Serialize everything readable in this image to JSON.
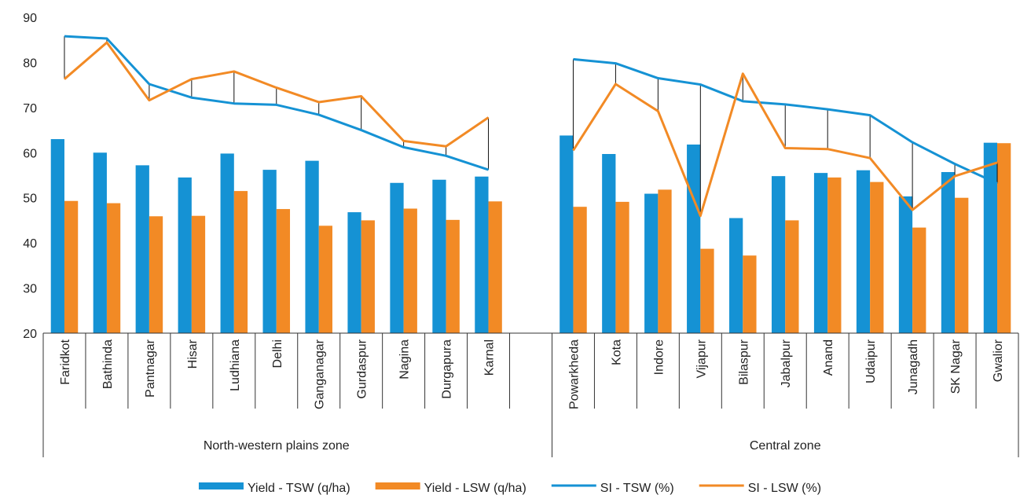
{
  "chart_data": {
    "type": "bar-line",
    "categories": [
      "Faridkot",
      "Bathinda",
      "Pantnagar",
      "Hisar",
      "Ludhiana",
      "Delhi",
      "Ganganagar",
      "Gurdaspur",
      "Nagina",
      "Durgapura",
      "Karnal",
      null,
      "Powarkheda",
      "Kota",
      "Indore",
      "Vijapur",
      "Bilaspur",
      "Jabalpur",
      "Anand",
      "Udaipur",
      "Junagadh",
      "SK Nagar",
      "Gwalior"
    ],
    "groups": [
      "North-western plains zone",
      "Central zone"
    ],
    "series": [
      {
        "name": "Yield - TSW (q/ha)",
        "type": "bar",
        "color": "#1592d4",
        "values": [
          63,
          60,
          57.2,
          54.5,
          59.8,
          56.2,
          58.2,
          46.8,
          53.3,
          54,
          54.7,
          null,
          63.8,
          59.7,
          50.9,
          61.8,
          45.5,
          54.8,
          55.5,
          56.1,
          50.3,
          55.7,
          62.2
        ]
      },
      {
        "name": "Yield - LSW (q/ha)",
        "type": "bar",
        "color": "#f28a25",
        "values": [
          49.3,
          48.8,
          45.9,
          46,
          51.5,
          47.5,
          43.8,
          45,
          47.6,
          45.1,
          49.2,
          null,
          48,
          49.1,
          51.8,
          38.7,
          37.2,
          45,
          54.5,
          53.5,
          43.4,
          50,
          62.1
        ]
      },
      {
        "name": "SI - TSW (%)",
        "type": "line",
        "color": "#1592d4",
        "values": [
          85.8,
          85.3,
          75.2,
          72.2,
          70.9,
          70.6,
          68.4,
          65,
          61.2,
          59.3,
          56.2,
          null,
          80.7,
          79.8,
          76.5,
          75.1,
          71.4,
          70.7,
          69.6,
          68.3,
          62.3,
          57.5,
          53.2
        ]
      },
      {
        "name": "SI - LSW (%)",
        "type": "line",
        "color": "#f28a25",
        "values": [
          76.3,
          84.4,
          71.6,
          76.3,
          78,
          74.4,
          71.2,
          72.5,
          62.6,
          61.4,
          67.8,
          null,
          60.5,
          75.2,
          69.2,
          46,
          77.5,
          61,
          60.8,
          58.8,
          47.3,
          54.8,
          57.8
        ]
      }
    ],
    "high_low_lines": true,
    "ylim": [
      20,
      90
    ],
    "yticks": [
      20,
      30,
      40,
      50,
      60,
      70,
      80,
      90
    ],
    "grid": false,
    "legend": "bottom"
  }
}
